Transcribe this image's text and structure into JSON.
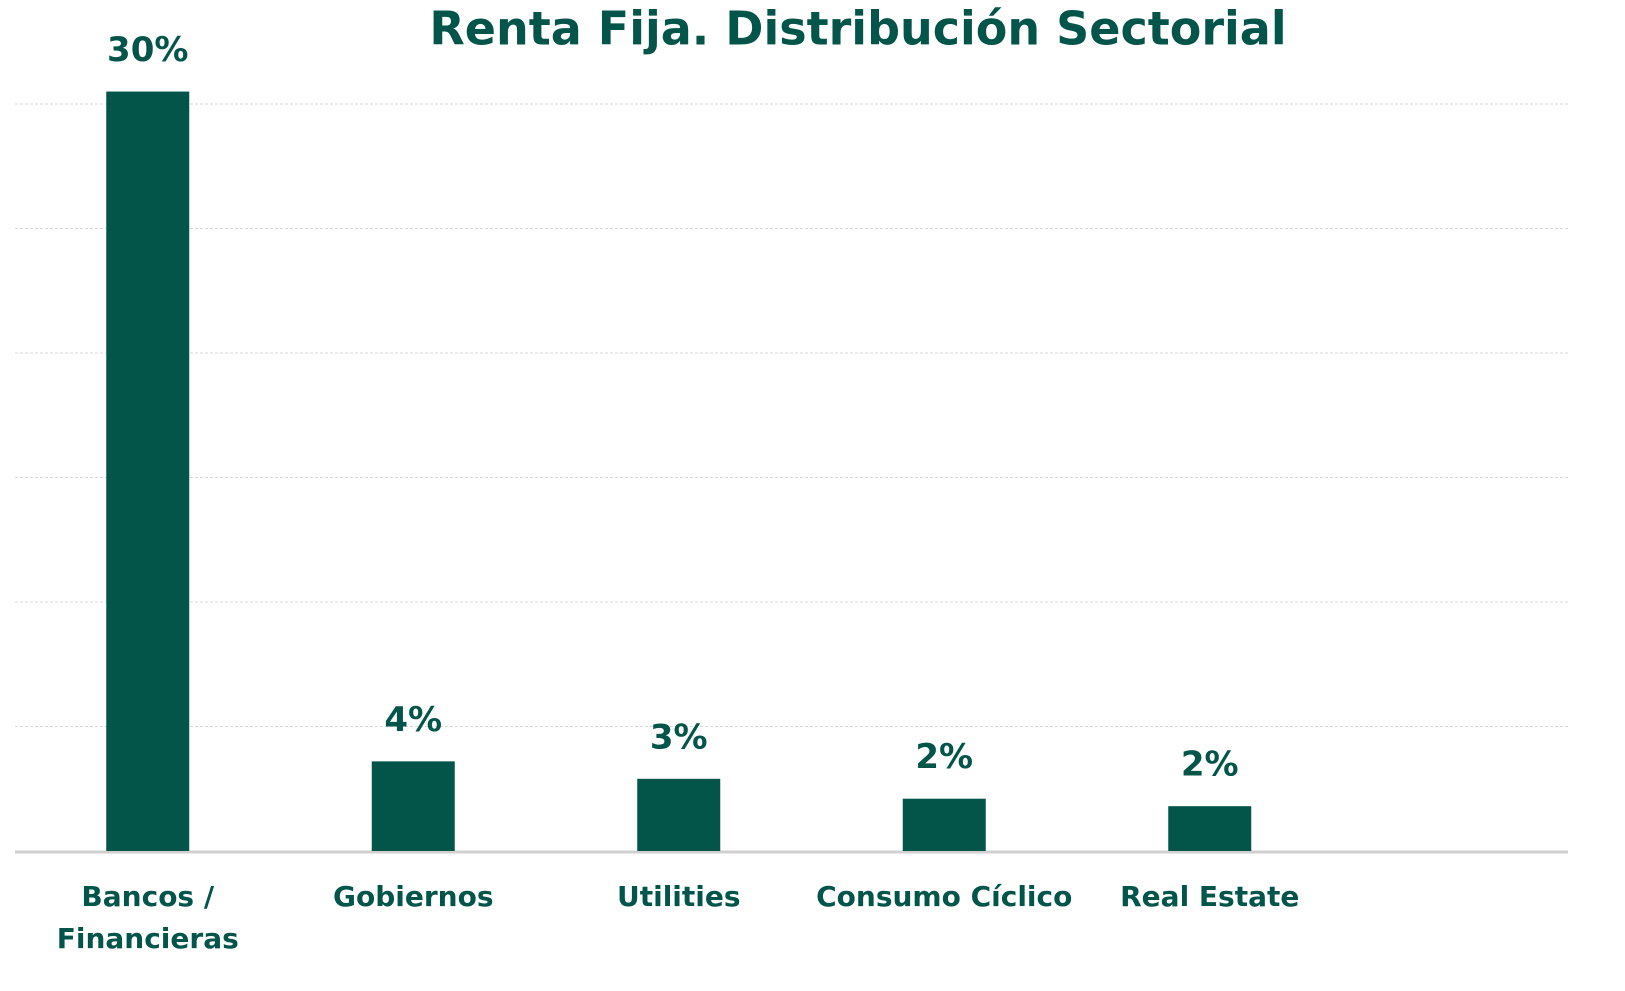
{
  "chart_data": {
    "type": "bar",
    "title": "Renta Fija. Distribución Sectorial",
    "categories": [
      "Bancos /\nFinancieras",
      "Gobiernos",
      "Utilities",
      "Consumo Cíclico",
      "Real Estate"
    ],
    "values": [
      30.5,
      3.6,
      2.9,
      2.1,
      1.8
    ],
    "value_labels": [
      "30%",
      "4%",
      "3%",
      "2%",
      "2%"
    ],
    "color": "#03554a",
    "ylim": [
      0,
      30
    ],
    "yticks": [
      0,
      5,
      10,
      15,
      20,
      25,
      30
    ],
    "grid": true
  }
}
